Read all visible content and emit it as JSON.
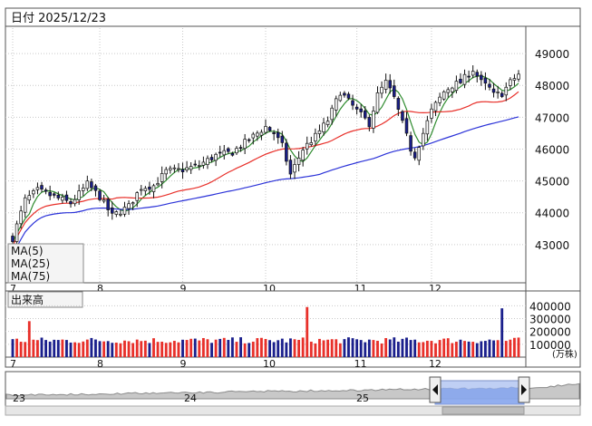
{
  "header": {
    "date_label": "日付 2025/12/23"
  },
  "chart_data": {
    "type": "candlestick",
    "price": {
      "ylim": [
        41800,
        49800
      ],
      "yticks": [
        43000,
        44000,
        45000,
        46000,
        47000,
        48000,
        49000
      ],
      "ytick_labels": [
        "43000",
        "44000",
        "45000",
        "46000",
        "47000",
        "48000",
        "49000"
      ]
    },
    "months": [
      {
        "label": "7",
        "x_index": 0
      },
      {
        "label": "8",
        "x_index": 21
      },
      {
        "label": "9",
        "x_index": 41
      },
      {
        "label": "10",
        "x_index": 61
      },
      {
        "label": "11",
        "x_index": 83
      },
      {
        "label": "12",
        "x_index": 101
      }
    ],
    "anchors": [
      [
        0,
        43200
      ],
      [
        3,
        44400
      ],
      [
        6,
        44700
      ],
      [
        10,
        44500
      ],
      [
        14,
        44300
      ],
      [
        18,
        44900
      ],
      [
        21,
        44500
      ],
      [
        24,
        43900
      ],
      [
        28,
        44200
      ],
      [
        31,
        44800
      ],
      [
        34,
        44850
      ],
      [
        37,
        45300
      ],
      [
        41,
        45350
      ],
      [
        45,
        45500
      ],
      [
        49,
        45800
      ],
      [
        53,
        45900
      ],
      [
        57,
        46300
      ],
      [
        61,
        46700
      ],
      [
        63,
        46500
      ],
      [
        65,
        46100
      ],
      [
        67,
        45200
      ],
      [
        70,
        46000
      ],
      [
        73,
        46400
      ],
      [
        76,
        46900
      ],
      [
        79,
        47800
      ],
      [
        81,
        47500
      ],
      [
        83,
        47200
      ],
      [
        86,
        46800
      ],
      [
        88,
        47700
      ],
      [
        90,
        48100
      ],
      [
        92,
        47600
      ],
      [
        94,
        46800
      ],
      [
        96,
        46000
      ],
      [
        97,
        45800
      ],
      [
        99,
        46500
      ],
      [
        101,
        47200
      ],
      [
        104,
        47800
      ],
      [
        106,
        48000
      ],
      [
        108,
        48100
      ],
      [
        111,
        48500
      ],
      [
        113,
        48100
      ],
      [
        114,
        48000
      ],
      [
        115,
        47900
      ],
      [
        116,
        47700
      ],
      [
        118,
        47750
      ],
      [
        120,
        48100
      ],
      [
        122,
        48350
      ]
    ],
    "seed": 7,
    "ma_legend": [
      {
        "label": "MA(5)",
        "color": "#2e8b2e"
      },
      {
        "label": "MA(25)",
        "color": "#e8302a"
      },
      {
        "label": "MA(75)",
        "color": "#2b32d8"
      }
    ],
    "candle_up_color": "#ffffff",
    "candle_down_color": "#1a1f8c",
    "volume": {
      "title": "出来高",
      "unit": "(万株)",
      "ylim": [
        0,
        480000
      ],
      "yticks": [
        100000,
        200000,
        300000,
        400000
      ],
      "ytick_labels": [
        "100000",
        "200000",
        "300000",
        "400000"
      ],
      "up_color": "#e8302a",
      "down_color": "#1a1f8c",
      "spikes": [
        {
          "index": 4,
          "value": 280000
        },
        {
          "index": 71,
          "value": 390000
        },
        {
          "index": 118,
          "value": 380000
        }
      ]
    },
    "navigator": {
      "year_labels": [
        "23",
        "24",
        "25"
      ]
    }
  }
}
